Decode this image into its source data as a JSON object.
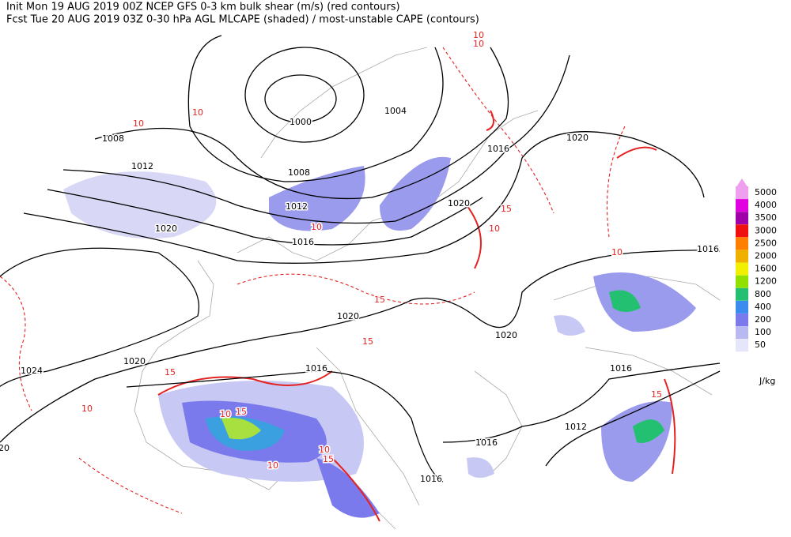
{
  "header": {
    "line1": "Init  Mon 19 AUG 2019 00Z  NCEP GFS 0-3 km bulk shear (m/s) (red contours)",
    "line2": "Fcst Tue 20 AUG 2019 03Z  0-30 hPa AGL MLCAPE (shaded) / most-unstable CAPE (contours)"
  },
  "legend": {
    "levels": [
      5000,
      4000,
      3500,
      3000,
      2500,
      2000,
      1600,
      1200,
      800,
      400,
      200,
      100,
      50
    ],
    "colors": [
      "#ee9fee",
      "#e000e0",
      "#a000a8",
      "#f01010",
      "#ff8000",
      "#f0b000",
      "#f0f000",
      "#90e000",
      "#22c070",
      "#3c8cf0",
      "#7a7aec",
      "#b8b8f2",
      "#e6e6fa"
    ],
    "unit": "J/kg"
  },
  "map": {
    "isobar_labels": [
      "1000",
      "1004",
      "1008",
      "1012",
      "1008",
      "1012",
      "1016",
      "1016",
      "1020",
      "1020",
      "1020",
      "1020",
      "1020",
      "1020",
      "1024",
      "1016",
      "1016",
      "1012",
      "1016",
      "1016",
      "1016",
      "20"
    ],
    "shear_labels": [
      "10",
      "10",
      "10",
      "10",
      "15",
      "10",
      "15",
      "15",
      "10",
      "15",
      "10",
      "10",
      "15",
      "10",
      "15",
      "10",
      "10",
      "15"
    ]
  }
}
